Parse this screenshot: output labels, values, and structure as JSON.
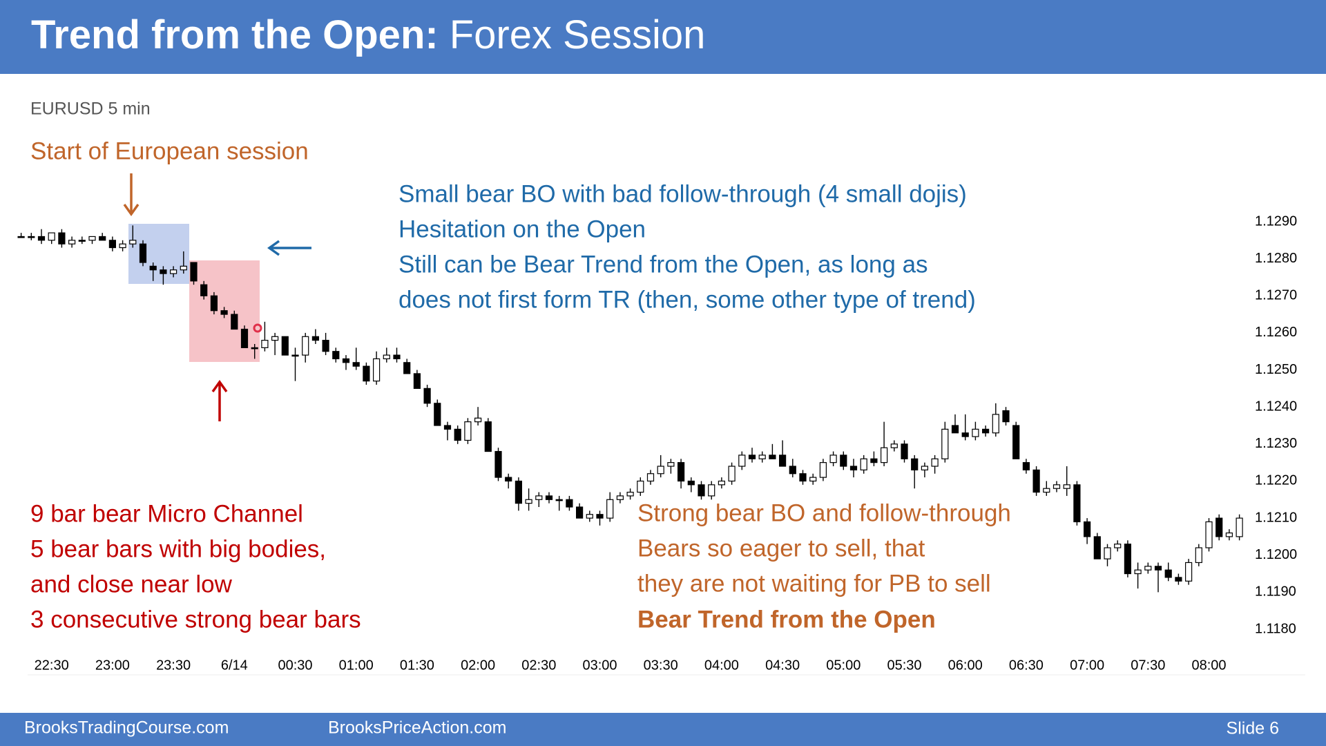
{
  "header": {
    "title_bold": "Trend from the Open:",
    "title_rest": "Forex Session"
  },
  "chart_data": {
    "type": "candlestick",
    "subtitle": "EURUSD 5 min",
    "up_color": "#ffffff",
    "down_color": "#000000",
    "xlim": [
      0,
      120
    ],
    "ylim": [
      1.118,
      1.129
    ],
    "yticks": [
      {
        "value": 1.129,
        "label": "1.1290"
      },
      {
        "value": 1.128,
        "label": "1.1280"
      },
      {
        "value": 1.127,
        "label": "1.1270"
      },
      {
        "value": 1.126,
        "label": "1.1260"
      },
      {
        "value": 1.125,
        "label": "1.1250"
      },
      {
        "value": 1.124,
        "label": "1.1240"
      },
      {
        "value": 1.123,
        "label": "1.1230"
      },
      {
        "value": 1.122,
        "label": "1.1220"
      },
      {
        "value": 1.121,
        "label": "1.1210"
      },
      {
        "value": 1.12,
        "label": "1.1200"
      },
      {
        "value": 1.119,
        "label": "1.1190"
      },
      {
        "value": 1.118,
        "label": "1.1180"
      }
    ],
    "xticks": [
      {
        "value": 3,
        "label": "22:30"
      },
      {
        "value": 9,
        "label": "23:00"
      },
      {
        "value": 15,
        "label": "23:30"
      },
      {
        "value": 21,
        "label": "6/14"
      },
      {
        "value": 27,
        "label": "00:30"
      },
      {
        "value": 33,
        "label": "01:00"
      },
      {
        "value": 39,
        "label": "01:30"
      },
      {
        "value": 45,
        "label": "02:00"
      },
      {
        "value": 51,
        "label": "02:30"
      },
      {
        "value": 57,
        "label": "03:00"
      },
      {
        "value": 63,
        "label": "03:30"
      },
      {
        "value": 69,
        "label": "04:00"
      },
      {
        "value": 75,
        "label": "04:30"
      },
      {
        "value": 81,
        "label": "05:00"
      },
      {
        "value": 87,
        "label": "05:30"
      },
      {
        "value": 93,
        "label": "06:00"
      },
      {
        "value": 99,
        "label": "06:30"
      },
      {
        "value": 105,
        "label": "07:00"
      },
      {
        "value": 111,
        "label": "07:30"
      },
      {
        "value": 117,
        "label": "08:00"
      }
    ],
    "ohlc": [
      [
        1.1286,
        1.1287,
        1.1286,
        1.1286
      ],
      [
        1.1286,
        1.1287,
        1.1285,
        1.1286
      ],
      [
        1.1286,
        1.1288,
        1.1284,
        1.1285
      ],
      [
        1.1285,
        1.1287,
        1.1284,
        1.1287
      ],
      [
        1.1287,
        1.1288,
        1.1283,
        1.1284
      ],
      [
        1.1284,
        1.1286,
        1.1283,
        1.1285
      ],
      [
        1.1285,
        1.1286,
        1.1284,
        1.1285
      ],
      [
        1.1285,
        1.1286,
        1.1284,
        1.1286
      ],
      [
        1.1286,
        1.1287,
        1.1285,
        1.1285
      ],
      [
        1.1285,
        1.1286,
        1.1282,
        1.1283
      ],
      [
        1.1283,
        1.1285,
        1.1282,
        1.1284
      ],
      [
        1.1284,
        1.1289,
        1.1283,
        1.1285
      ],
      [
        1.1284,
        1.1285,
        1.1278,
        1.1279
      ],
      [
        1.1278,
        1.1279,
        1.1274,
        1.1277
      ],
      [
        1.1277,
        1.1278,
        1.1273,
        1.1276
      ],
      [
        1.1276,
        1.1278,
        1.1275,
        1.1277
      ],
      [
        1.1277,
        1.1282,
        1.1276,
        1.1278
      ],
      [
        1.1279,
        1.1279,
        1.1273,
        1.1274
      ],
      [
        1.1273,
        1.1274,
        1.1269,
        1.127
      ],
      [
        1.127,
        1.1271,
        1.1265,
        1.1266
      ],
      [
        1.1266,
        1.1267,
        1.1264,
        1.1265
      ],
      [
        1.1265,
        1.1266,
        1.1261,
        1.1261
      ],
      [
        1.1261,
        1.1262,
        1.1256,
        1.1256
      ],
      [
        1.1256,
        1.1257,
        1.1253,
        1.1256
      ],
      [
        1.1256,
        1.1263,
        1.1255,
        1.1258
      ],
      [
        1.1258,
        1.126,
        1.1254,
        1.1259
      ],
      [
        1.1259,
        1.1259,
        1.1254,
        1.1254
      ],
      [
        1.1254,
        1.1256,
        1.1247,
        1.1254
      ],
      [
        1.1254,
        1.126,
        1.1252,
        1.1259
      ],
      [
        1.1259,
        1.1261,
        1.1257,
        1.1258
      ],
      [
        1.1258,
        1.126,
        1.1254,
        1.1255
      ],
      [
        1.1255,
        1.1256,
        1.1252,
        1.1253
      ],
      [
        1.1253,
        1.1254,
        1.125,
        1.1252
      ],
      [
        1.1252,
        1.1256,
        1.125,
        1.1251
      ],
      [
        1.1251,
        1.1252,
        1.1246,
        1.1247
      ],
      [
        1.1247,
        1.1255,
        1.1246,
        1.1253
      ],
      [
        1.1253,
        1.1256,
        1.1252,
        1.1254
      ],
      [
        1.1254,
        1.1256,
        1.1252,
        1.1253
      ],
      [
        1.1252,
        1.1253,
        1.1249,
        1.1249
      ],
      [
        1.1249,
        1.125,
        1.1245,
        1.1245
      ],
      [
        1.1245,
        1.1246,
        1.124,
        1.1241
      ],
      [
        1.1241,
        1.1242,
        1.1235,
        1.1235
      ],
      [
        1.1235,
        1.1236,
        1.1231,
        1.1234
      ],
      [
        1.1234,
        1.1235,
        1.123,
        1.1231
      ],
      [
        1.1231,
        1.1237,
        1.123,
        1.1236
      ],
      [
        1.1236,
        1.124,
        1.1235,
        1.1237
      ],
      [
        1.1236,
        1.1237,
        1.1228,
        1.1228
      ],
      [
        1.1228,
        1.1229,
        1.122,
        1.1221
      ],
      [
        1.1221,
        1.1222,
        1.1218,
        1.122
      ],
      [
        1.122,
        1.1221,
        1.1212,
        1.1214
      ],
      [
        1.1214,
        1.1218,
        1.1212,
        1.1215
      ],
      [
        1.1215,
        1.1217,
        1.1213,
        1.1216
      ],
      [
        1.1216,
        1.1217,
        1.1214,
        1.1215
      ],
      [
        1.1215,
        1.1216,
        1.1212,
        1.1215
      ],
      [
        1.1215,
        1.1216,
        1.1212,
        1.1213
      ],
      [
        1.1213,
        1.1214,
        1.121,
        1.121
      ],
      [
        1.121,
        1.1212,
        1.1209,
        1.1211
      ],
      [
        1.1211,
        1.1212,
        1.1208,
        1.121
      ],
      [
        1.121,
        1.1217,
        1.1209,
        1.1215
      ],
      [
        1.1215,
        1.1217,
        1.1214,
        1.1216
      ],
      [
        1.1216,
        1.1218,
        1.1215,
        1.1217
      ],
      [
        1.1217,
        1.1221,
        1.1216,
        1.122
      ],
      [
        1.122,
        1.1223,
        1.1219,
        1.1222
      ],
      [
        1.1222,
        1.1227,
        1.1221,
        1.1224
      ],
      [
        1.1224,
        1.1226,
        1.1222,
        1.1225
      ],
      [
        1.1225,
        1.1226,
        1.1218,
        1.122
      ],
      [
        1.122,
        1.1221,
        1.1217,
        1.1219
      ],
      [
        1.1219,
        1.122,
        1.1215,
        1.1216
      ],
      [
        1.1216,
        1.122,
        1.1215,
        1.1219
      ],
      [
        1.1219,
        1.1221,
        1.1218,
        1.122
      ],
      [
        1.122,
        1.1225,
        1.1219,
        1.1224
      ],
      [
        1.1224,
        1.1228,
        1.1223,
        1.1227
      ],
      [
        1.1227,
        1.1229,
        1.1225,
        1.1226
      ],
      [
        1.1226,
        1.1228,
        1.1225,
        1.1227
      ],
      [
        1.1227,
        1.123,
        1.1226,
        1.1226
      ],
      [
        1.1227,
        1.1231,
        1.1224,
        1.1224
      ],
      [
        1.1224,
        1.1226,
        1.1221,
        1.1222
      ],
      [
        1.1222,
        1.1223,
        1.1219,
        1.122
      ],
      [
        1.122,
        1.1222,
        1.1219,
        1.1221
      ],
      [
        1.1221,
        1.1226,
        1.122,
        1.1225
      ],
      [
        1.1225,
        1.1228,
        1.1224,
        1.1227
      ],
      [
        1.1227,
        1.1228,
        1.1223,
        1.1224
      ],
      [
        1.1224,
        1.1226,
        1.1221,
        1.1223
      ],
      [
        1.1223,
        1.1227,
        1.1222,
        1.1226
      ],
      [
        1.1226,
        1.1228,
        1.1224,
        1.1225
      ],
      [
        1.1225,
        1.1236,
        1.1224,
        1.1229
      ],
      [
        1.1229,
        1.1231,
        1.1228,
        1.123
      ],
      [
        1.123,
        1.1231,
        1.1225,
        1.1226
      ],
      [
        1.1226,
        1.1227,
        1.1218,
        1.1223
      ],
      [
        1.1223,
        1.1225,
        1.1221,
        1.1224
      ],
      [
        1.1224,
        1.1227,
        1.1222,
        1.1226
      ],
      [
        1.1226,
        1.1236,
        1.1225,
        1.1234
      ],
      [
        1.1235,
        1.1238,
        1.1233,
        1.1233
      ],
      [
        1.1233,
        1.1238,
        1.1231,
        1.1232
      ],
      [
        1.1232,
        1.1236,
        1.1231,
        1.1234
      ],
      [
        1.1234,
        1.1235,
        1.1232,
        1.1233
      ],
      [
        1.1233,
        1.1241,
        1.1232,
        1.1238
      ],
      [
        1.1239,
        1.124,
        1.1235,
        1.1236
      ],
      [
        1.1235,
        1.1236,
        1.1226,
        1.1226
      ],
      [
        1.1225,
        1.1226,
        1.1222,
        1.1223
      ],
      [
        1.1223,
        1.1224,
        1.1216,
        1.1217
      ],
      [
        1.1217,
        1.122,
        1.1216,
        1.1218
      ],
      [
        1.1218,
        1.122,
        1.1217,
        1.1219
      ],
      [
        1.1218,
        1.1224,
        1.1216,
        1.1219
      ],
      [
        1.1219,
        1.122,
        1.1208,
        1.1209
      ],
      [
        1.1209,
        1.121,
        1.1203,
        1.1205
      ],
      [
        1.1205,
        1.1206,
        1.1199,
        1.1199
      ],
      [
        1.1199,
        1.1203,
        1.1197,
        1.1202
      ],
      [
        1.1202,
        1.1204,
        1.1201,
        1.1203
      ],
      [
        1.1203,
        1.1204,
        1.1194,
        1.1195
      ],
      [
        1.1195,
        1.1198,
        1.1191,
        1.1196
      ],
      [
        1.1196,
        1.1198,
        1.1195,
        1.1197
      ],
      [
        1.1197,
        1.1198,
        1.119,
        1.1196
      ],
      [
        1.1196,
        1.1198,
        1.1193,
        1.1194
      ],
      [
        1.1194,
        1.1195,
        1.1192,
        1.1193
      ],
      [
        1.1193,
        1.1199,
        1.1192,
        1.1198
      ],
      [
        1.1198,
        1.1203,
        1.1197,
        1.1202
      ],
      [
        1.1202,
        1.121,
        1.1201,
        1.1209
      ],
      [
        1.121,
        1.1211,
        1.1204,
        1.1205
      ],
      [
        1.1205,
        1.1207,
        1.1204,
        1.1206
      ],
      [
        1.1205,
        1.1211,
        1.1204,
        1.121
      ]
    ],
    "annotations": {
      "session_note": "Start of European session",
      "blue_note": [
        "Small bear BO with bad follow-through (4 small dojis)",
        "Hesitation on the Open",
        "Still can be Bear Trend from the Open, as long as",
        "does not first form TR (then, some other type of trend)"
      ],
      "red_note": [
        "9 bar bear Micro Channel",
        "5 bear bars with big bodies,",
        "and close near low",
        "3 consecutive strong bear bars"
      ],
      "orange_note": [
        "Strong bear BO and follow-through",
        "Bears so eager to sell, that",
        "they are not waiting for PB to sell"
      ],
      "orange_conclusion": "Bear Trend from the Open"
    }
  },
  "footer": {
    "left": "BrooksTradingCourse.com",
    "middle": "BrooksPriceAction.com",
    "slide": "Slide  6"
  }
}
